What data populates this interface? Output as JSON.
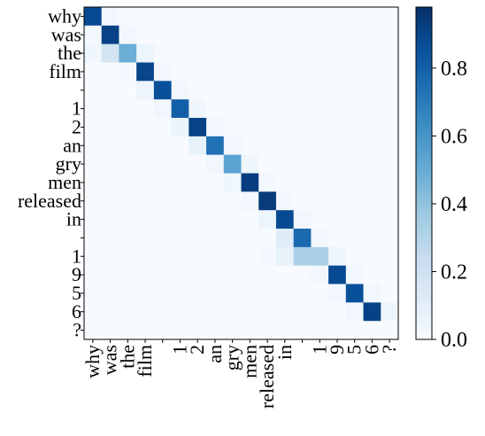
{
  "chart_data": {
    "type": "heatmap",
    "title": "",
    "xlabel": "",
    "ylabel": "",
    "x_labels": [
      "why",
      "was",
      "the",
      "film",
      "",
      "1",
      "2",
      "an",
      "gry",
      "men",
      "released",
      "in",
      "",
      "1",
      "9",
      "5",
      "6",
      "?"
    ],
    "y_labels": [
      "why",
      "was",
      "the",
      "film",
      "",
      "1",
      "2",
      "an",
      "gry",
      "men",
      "released",
      "in",
      "",
      "1",
      "9",
      "5",
      "6",
      "?"
    ],
    "matrix": [
      [
        0.9,
        0.03,
        0,
        0,
        0,
        0,
        0,
        0,
        0,
        0,
        0,
        0,
        0,
        0,
        0,
        0,
        0,
        0
      ],
      [
        0.02,
        0.93,
        0.03,
        0,
        0,
        0,
        0,
        0,
        0,
        0,
        0,
        0,
        0,
        0,
        0,
        0,
        0,
        0
      ],
      [
        0.04,
        0.18,
        0.5,
        0.05,
        0.01,
        0,
        0,
        0,
        0,
        0,
        0,
        0,
        0,
        0,
        0,
        0,
        0,
        0
      ],
      [
        0,
        0,
        0.02,
        0.92,
        0.03,
        0,
        0,
        0,
        0,
        0,
        0,
        0,
        0,
        0,
        0,
        0,
        0,
        0
      ],
      [
        0,
        0,
        0,
        0.05,
        0.88,
        0.03,
        0,
        0,
        0,
        0,
        0,
        0,
        0,
        0,
        0,
        0,
        0,
        0
      ],
      [
        0,
        0,
        0,
        0,
        0.03,
        0.82,
        0.04,
        0,
        0,
        0,
        0,
        0,
        0,
        0,
        0,
        0,
        0,
        0
      ],
      [
        0,
        0,
        0,
        0,
        0,
        0.06,
        0.93,
        0.03,
        0,
        0,
        0,
        0,
        0,
        0,
        0,
        0,
        0,
        0
      ],
      [
        0,
        0,
        0,
        0,
        0,
        0,
        0.08,
        0.75,
        0.03,
        0,
        0,
        0,
        0,
        0,
        0,
        0,
        0,
        0
      ],
      [
        0,
        0,
        0,
        0,
        0,
        0,
        0,
        0.03,
        0.55,
        0.04,
        0,
        0,
        0,
        0,
        0,
        0,
        0,
        0
      ],
      [
        0,
        0,
        0,
        0,
        0,
        0,
        0,
        0,
        0.04,
        0.95,
        0.02,
        0,
        0,
        0,
        0,
        0,
        0,
        0
      ],
      [
        0,
        0,
        0,
        0,
        0,
        0,
        0,
        0,
        0,
        0.02,
        0.96,
        0.02,
        0,
        0,
        0,
        0,
        0,
        0
      ],
      [
        0,
        0,
        0,
        0,
        0,
        0,
        0,
        0,
        0,
        0,
        0.05,
        0.9,
        0.03,
        0,
        0,
        0,
        0,
        0
      ],
      [
        0,
        0,
        0,
        0,
        0,
        0,
        0,
        0,
        0,
        0,
        0,
        0.12,
        0.78,
        0.02,
        0,
        0,
        0,
        0
      ],
      [
        0,
        0,
        0,
        0,
        0,
        0,
        0,
        0,
        0,
        0,
        0.02,
        0.08,
        0.33,
        0.33,
        0.04,
        0,
        0,
        0
      ],
      [
        0,
        0,
        0,
        0,
        0,
        0,
        0,
        0,
        0,
        0,
        0,
        0,
        0,
        0.03,
        0.9,
        0.02,
        0,
        0
      ],
      [
        0,
        0,
        0,
        0,
        0,
        0,
        0,
        0,
        0,
        0,
        0,
        0,
        0,
        0,
        0.03,
        0.88,
        0.03,
        0
      ],
      [
        0,
        0,
        0,
        0,
        0,
        0,
        0,
        0,
        0,
        0,
        0,
        0,
        0,
        0,
        0,
        0.03,
        0.93,
        0.05
      ],
      [
        0,
        0,
        0,
        0,
        0,
        0,
        0,
        0,
        0,
        0,
        0,
        0,
        0,
        0,
        0,
        0,
        0,
        0
      ]
    ],
    "colormap": "Blues",
    "vmin": 0,
    "vmax": 1,
    "colorbar_ticks": [
      "0.0",
      "0.2",
      "0.4",
      "0.6",
      "0.8"
    ],
    "colorbar_tick_values": [
      0,
      0.2,
      0.4,
      0.6,
      0.8
    ],
    "colorbar_max": 0.98,
    "grid": false
  }
}
